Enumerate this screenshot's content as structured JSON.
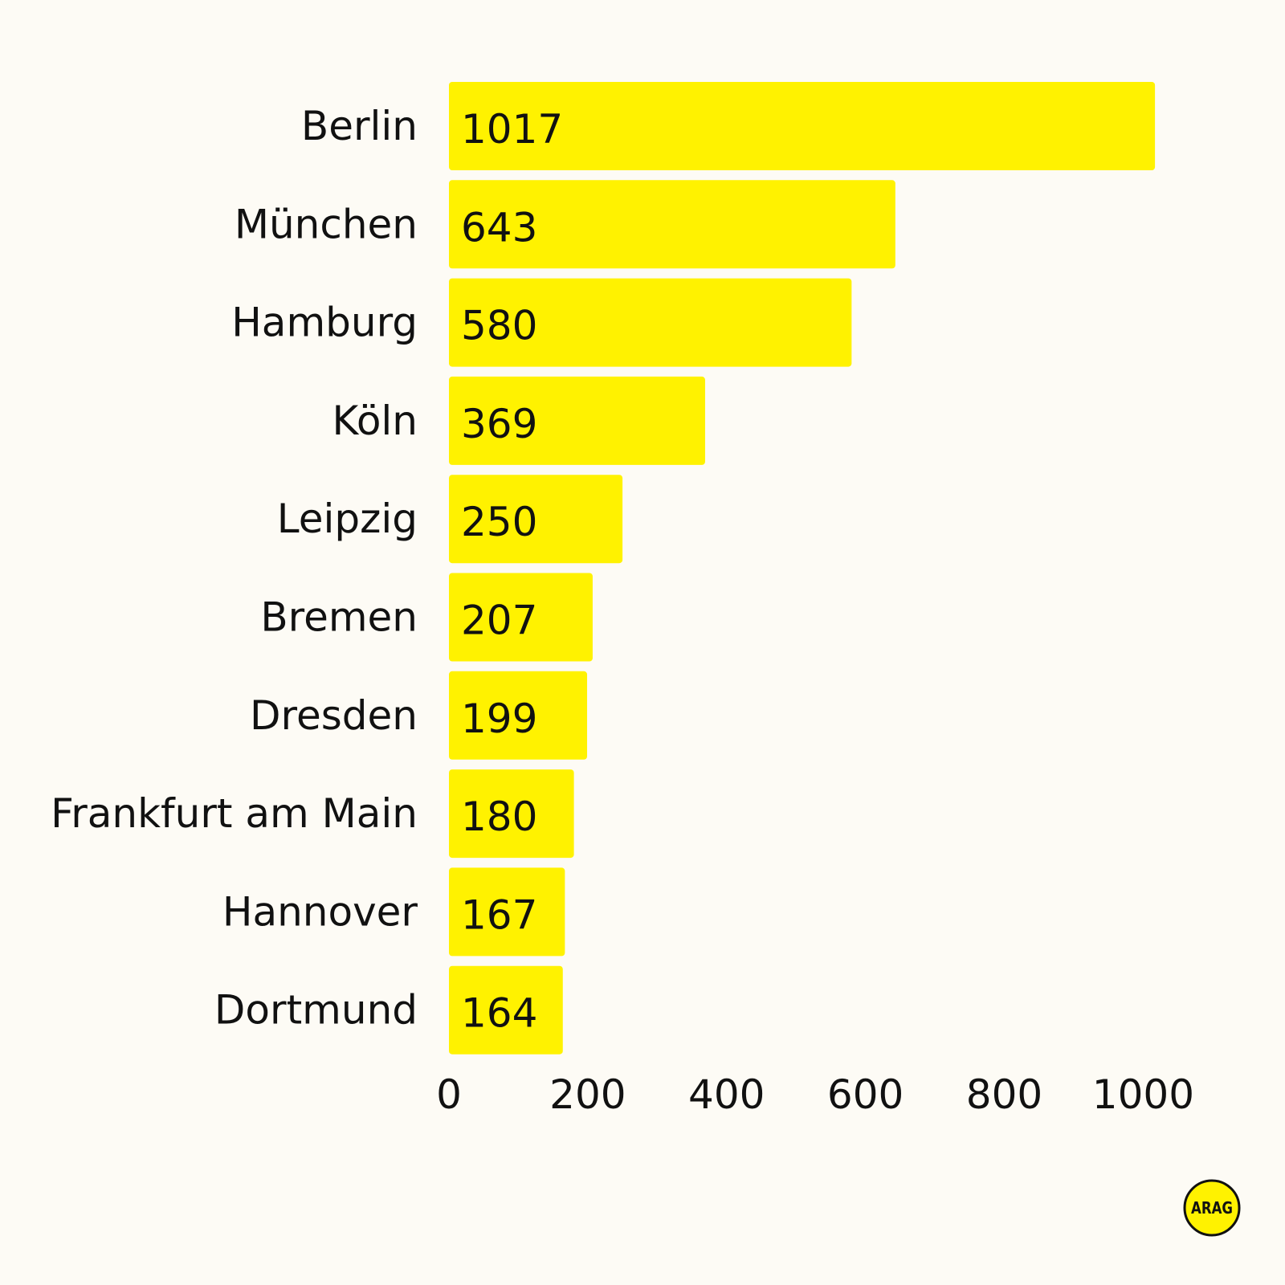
{
  "chart_data": {
    "type": "bar",
    "orientation": "horizontal",
    "categories": [
      "Berlin",
      "München",
      "Hamburg",
      "Köln",
      "Leipzig",
      "Bremen",
      "Dresden",
      "Frankfurt am Main",
      "Hannover",
      "Dortmund"
    ],
    "values": [
      1017,
      643,
      580,
      369,
      250,
      207,
      199,
      180,
      167,
      164
    ],
    "xlim": [
      0,
      1100
    ],
    "xticks": [
      0,
      200,
      400,
      600,
      800,
      1000
    ],
    "title": "",
    "xlabel": "",
    "ylabel": "",
    "grid": false,
    "bar_color": "#fff200",
    "background_color": "#fdfbf5"
  },
  "logo": {
    "text": "ARAG",
    "color": "#fff200"
  }
}
